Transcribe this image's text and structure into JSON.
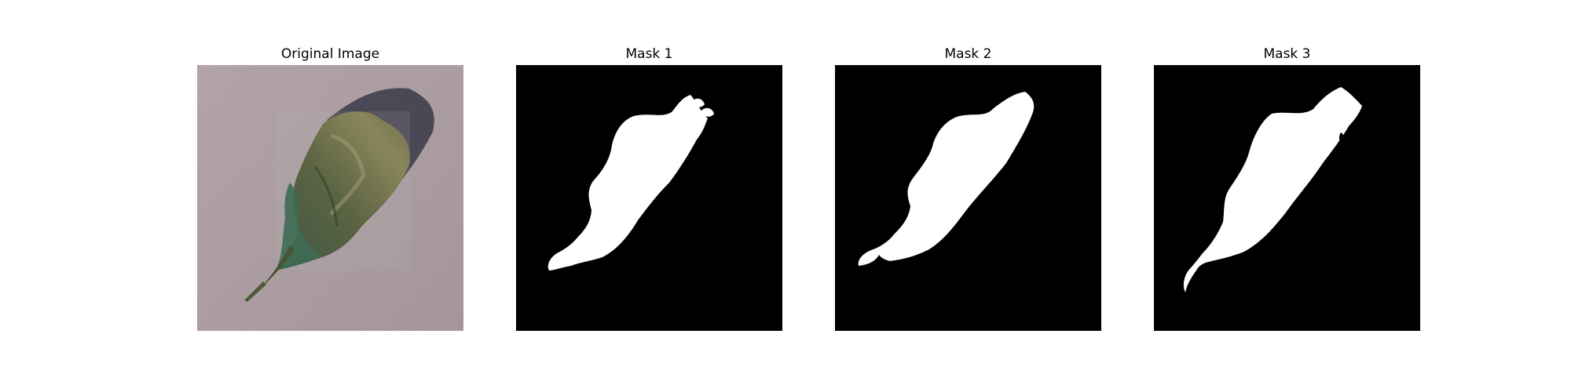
{
  "figure": {
    "panels": [
      {
        "title": "Original Image",
        "kind": "photo",
        "background": "#b3a4a8"
      },
      {
        "title": "Mask 1",
        "kind": "mask",
        "background": "#000000",
        "foreground": "#ffffff"
      },
      {
        "title": "Mask 2",
        "kind": "mask",
        "background": "#000000",
        "foreground": "#ffffff"
      },
      {
        "title": "Mask 3",
        "kind": "mask",
        "background": "#000000",
        "foreground": "#ffffff"
      }
    ]
  }
}
